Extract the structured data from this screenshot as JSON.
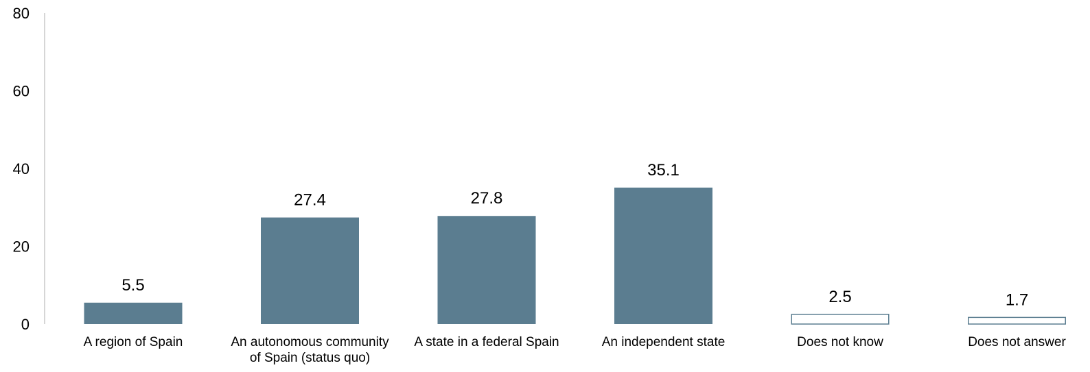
{
  "chart_data": {
    "type": "bar",
    "title": "",
    "xlabel": "",
    "ylabel": "",
    "ylim": [
      0,
      80
    ],
    "yticks": [
      0,
      20,
      40,
      60,
      80
    ],
    "grid": false,
    "categories": [
      [
        "A region of Spain"
      ],
      [
        "An autonomous community",
        "of Spain (status quo)"
      ],
      [
        "A state in a federal Spain"
      ],
      [
        "An independent state"
      ],
      [
        "Does not know"
      ],
      [
        "Does not answer"
      ]
    ],
    "values": [
      5.5,
      27.4,
      27.8,
      35.1,
      2.5,
      1.7
    ],
    "value_labels": [
      "5.5",
      "27.4",
      "27.8",
      "35.1",
      "2.5",
      "1.7"
    ],
    "bar_styles": [
      "filled",
      "filled",
      "filled",
      "filled",
      "outline",
      "outline"
    ],
    "colors": {
      "bar_fill": "#5b7d90",
      "bar_outline": "#5b7d90",
      "axis": "#c8c8c8"
    }
  }
}
